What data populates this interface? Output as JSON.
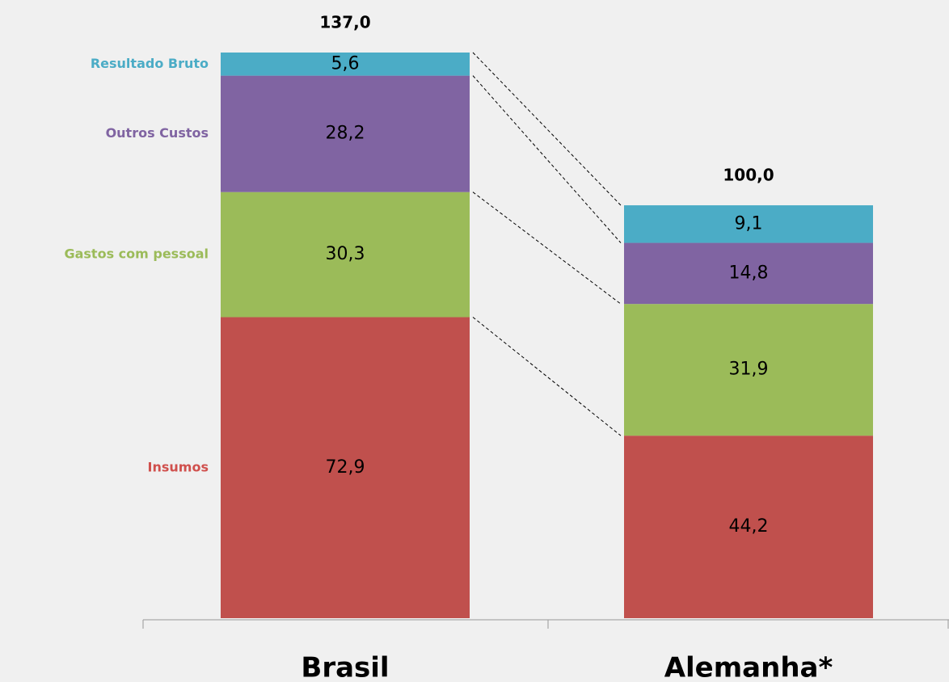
{
  "chart_data": {
    "type": "stacked-bar",
    "categories": [
      "Brasil",
      "Alemanha*"
    ],
    "series": [
      {
        "name": "Insumos",
        "color": "#c0504d",
        "values": [
          72.9,
          44.2
        ],
        "value_labels": [
          "72,9",
          "44,2"
        ]
      },
      {
        "name": "Gastos com pessoal",
        "color": "#9bbb59",
        "values": [
          30.3,
          31.9
        ],
        "value_labels": [
          "30,3",
          "31,9"
        ]
      },
      {
        "name": "Outros Custos",
        "color": "#8064a2",
        "values": [
          28.2,
          14.8
        ],
        "value_labels": [
          "28,2",
          "14,8"
        ]
      },
      {
        "name": "Resultado Bruto",
        "color": "#4bacc6",
        "values": [
          5.6,
          9.1
        ],
        "value_labels": [
          "5,6",
          "9,1"
        ]
      }
    ],
    "totals": [
      137.0,
      100.0
    ],
    "total_labels": [
      "137,0",
      "100,0"
    ]
  }
}
